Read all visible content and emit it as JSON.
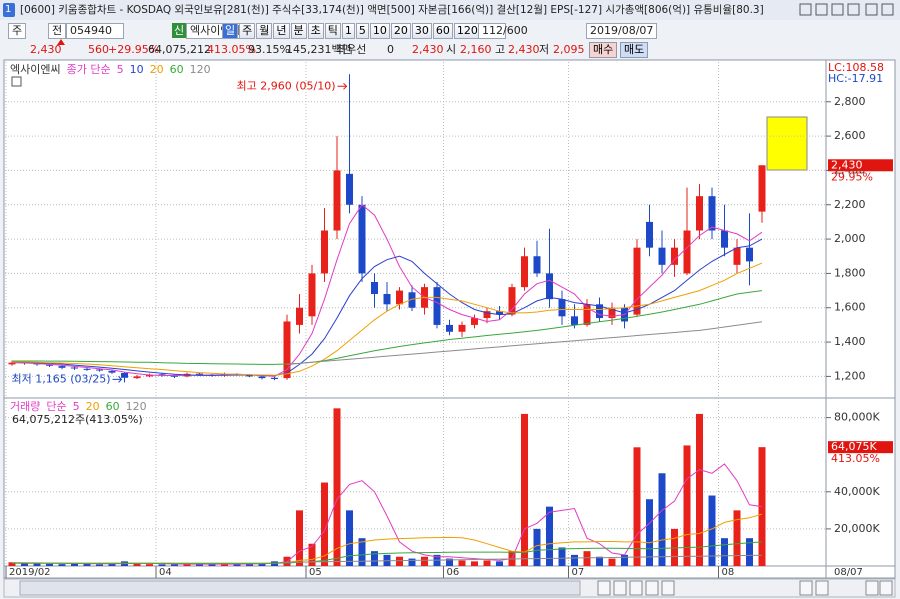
{
  "window": {
    "number": "1",
    "title": "[0600] 키움종합차트 - KOSDAQ 외국인보유[281(천)] 주식수[33,174(천)] 액면[500] 자본금[166(억)] 결산[12월] EPS[-127] 시가총액[806(억)] 유통비율[80.3]",
    "toolbar": {
      "market": "주",
      "scope": "전",
      "code": "054940",
      "badge": "신",
      "stock": "엑사이엔씨",
      "periods": [
        "일",
        "주",
        "월",
        "년",
        "분",
        "초",
        "틱"
      ],
      "intervals": [
        "1",
        "5",
        "10",
        "20",
        "30",
        "60",
        "120"
      ],
      "count": "112",
      "max": "/600",
      "date": "2019/08/07"
    },
    "quote": {
      "price": "2,430",
      "change": "560",
      "change_pct": "+29.95%",
      "volume": "64,075,212",
      "volume_pct": "413.05%",
      "ratio": "93.15%",
      "amount": "145,231백만",
      "best_label": "최우선",
      "best": "0",
      "best_price": "2,430",
      "open_label": "시",
      "open": "2,160",
      "high_label": "고",
      "high": "2,430",
      "low_label": "저",
      "low": "2,095",
      "buy": "매수",
      "sell": "매도"
    },
    "end_date": "08/07"
  },
  "chart_data": [
    {
      "type": "candlestick",
      "name": "엑사이엔씨",
      "legend_title": "종가 단순",
      "categories": [
        "2019/02",
        null,
        null,
        null,
        null,
        null,
        null,
        null,
        null,
        null,
        null,
        null,
        "04",
        null,
        null,
        null,
        null,
        null,
        null,
        null,
        null,
        null,
        null,
        null,
        "05",
        null,
        null,
        null,
        null,
        null,
        null,
        null,
        null,
        null,
        null,
        "06",
        null,
        null,
        null,
        null,
        null,
        null,
        null,
        null,
        null,
        "07",
        null,
        null,
        null,
        null,
        null,
        null,
        null,
        null,
        null,
        null,
        null,
        "08",
        null,
        null,
        null
      ],
      "open": [
        1270,
        1282,
        1276,
        1268,
        1260,
        1252,
        1244,
        1240,
        1232,
        1220,
        1190,
        1200,
        1212,
        1206,
        1200,
        1216,
        1210,
        1205,
        1214,
        1210,
        1200,
        1192,
        1190,
        1500,
        1550,
        1800,
        2050,
        2380,
        2200,
        1750,
        1680,
        1620,
        1690,
        1600,
        1720,
        1500,
        1460,
        1500,
        1540,
        1580,
        1560,
        1720,
        1900,
        1800,
        1650,
        1550,
        1500,
        1620,
        1540,
        1600,
        1560,
        2100,
        1950,
        1850,
        1800,
        2050,
        2250,
        2050,
        1850,
        1950,
        2160
      ],
      "high": [
        1292,
        1290,
        1282,
        1272,
        1264,
        1258,
        1250,
        1246,
        1238,
        1225,
        1208,
        1216,
        1218,
        1210,
        1222,
        1222,
        1214,
        1222,
        1218,
        1214,
        1205,
        1198,
        1560,
        1680,
        1850,
        2180,
        2600,
        2960,
        2250,
        1800,
        1750,
        1720,
        1730,
        1740,
        1750,
        1530,
        1520,
        1560,
        1600,
        1610,
        1740,
        1950,
        1990,
        2060,
        1700,
        1620,
        1650,
        1660,
        1630,
        1620,
        2000,
        2200,
        2050,
        2000,
        2300,
        2320,
        2300,
        2200,
        2000,
        2150,
        2430
      ],
      "low": [
        1262,
        1268,
        1262,
        1255,
        1242,
        1238,
        1232,
        1228,
        1215,
        1165,
        1185,
        1195,
        1198,
        1190,
        1195,
        1204,
        1198,
        1198,
        1204,
        1195,
        1183,
        1178,
        1180,
        1450,
        1500,
        1750,
        2000,
        2150,
        1750,
        1600,
        1580,
        1590,
        1580,
        1560,
        1480,
        1440,
        1430,
        1480,
        1510,
        1530,
        1550,
        1700,
        1780,
        1600,
        1500,
        1480,
        1490,
        1520,
        1500,
        1480,
        1550,
        1900,
        1800,
        1780,
        1790,
        2000,
        2000,
        1900,
        1800,
        1730,
        2095
      ],
      "close": [
        1280,
        1275,
        1270,
        1262,
        1250,
        1246,
        1240,
        1235,
        1222,
        1192,
        1200,
        1210,
        1205,
        1198,
        1215,
        1210,
        1204,
        1215,
        1210,
        1200,
        1190,
        1185,
        1520,
        1600,
        1800,
        2050,
        2400,
        2200,
        1800,
        1680,
        1620,
        1700,
        1600,
        1720,
        1500,
        1460,
        1500,
        1540,
        1580,
        1560,
        1720,
        1900,
        1800,
        1650,
        1550,
        1500,
        1620,
        1540,
        1600,
        1520,
        1950,
        1950,
        1850,
        1950,
        2050,
        2250,
        2050,
        1950,
        1950,
        1870,
        2430
      ],
      "up_color": "#e8211a",
      "down_color": "#1d48c8",
      "series": [
        {
          "name": "5",
          "color": "#e23cc4",
          "values": [
            1280,
            1278,
            1275,
            1270,
            1265,
            1258,
            1252,
            1245,
            1238,
            1225,
            1215,
            1208,
            1205,
            1205,
            1207,
            1208,
            1208,
            1210,
            1212,
            1210,
            1205,
            1200,
            1240,
            1330,
            1450,
            1650,
            1880,
            2090,
            2200,
            2140,
            2000,
            1840,
            1720,
            1660,
            1630,
            1590,
            1560,
            1540,
            1520,
            1530,
            1590,
            1680,
            1740,
            1760,
            1720,
            1680,
            1600,
            1560,
            1550,
            1560,
            1650,
            1720,
            1790,
            1880,
            1950,
            2020,
            2070,
            2050,
            2030,
            1990,
            2040
          ]
        },
        {
          "name": "10",
          "color": "#2a3fd0",
          "values": [
            1285,
            1282,
            1280,
            1276,
            1272,
            1266,
            1260,
            1254,
            1248,
            1240,
            1232,
            1225,
            1218,
            1212,
            1208,
            1206,
            1206,
            1207,
            1208,
            1208,
            1207,
            1205,
            1220,
            1270,
            1330,
            1420,
            1540,
            1670,
            1770,
            1840,
            1880,
            1900,
            1870,
            1800,
            1740,
            1680,
            1630,
            1590,
            1570,
            1560,
            1565,
            1600,
            1640,
            1660,
            1650,
            1630,
            1620,
            1610,
            1590,
            1570,
            1590,
            1620,
            1660,
            1700,
            1760,
            1820,
            1870,
            1910,
            1950,
            1960,
            2000
          ]
        },
        {
          "name": "20",
          "color": "#efa000",
          "values": [
            1285,
            1284,
            1282,
            1280,
            1278,
            1275,
            1272,
            1268,
            1262,
            1256,
            1250,
            1245,
            1240,
            1234,
            1228,
            1222,
            1218,
            1214,
            1212,
            1210,
            1208,
            1207,
            1215,
            1230,
            1260,
            1300,
            1350,
            1410,
            1470,
            1530,
            1580,
            1620,
            1650,
            1660,
            1660,
            1650,
            1640,
            1620,
            1600,
            1580,
            1570,
            1570,
            1575,
            1585,
            1590,
            1590,
            1590,
            1590,
            1595,
            1600,
            1610,
            1620,
            1640,
            1660,
            1680,
            1700,
            1730,
            1760,
            1800,
            1830,
            1860
          ]
        },
        {
          "name": "60",
          "color": "#3aa83a",
          "values": [
            1290,
            1290,
            1290,
            1289,
            1289,
            1288,
            1287,
            1286,
            1285,
            1284,
            1283,
            1282,
            1280,
            1278,
            1276,
            1275,
            1274,
            1273,
            1272,
            1271,
            1270,
            1270,
            1272,
            1276,
            1282,
            1292,
            1305,
            1320,
            1335,
            1350,
            1362,
            1374,
            1385,
            1395,
            1405,
            1415,
            1422,
            1430,
            1438,
            1445,
            1452,
            1460,
            1468,
            1478,
            1488,
            1498,
            1508,
            1518,
            1528,
            1538,
            1550,
            1562,
            1575,
            1590,
            1605,
            1620,
            1640,
            1660,
            1680,
            1690,
            1700
          ]
        },
        {
          "name": "120",
          "color": "#8c8c8c",
          "values": [
            null,
            null,
            null,
            null,
            null,
            null,
            null,
            null,
            null,
            null,
            null,
            null,
            null,
            null,
            null,
            null,
            null,
            null,
            null,
            null,
            null,
            null,
            1270,
            1276,
            1282,
            1288,
            1294,
            1300,
            1306,
            1312,
            1318,
            1324,
            1330,
            1336,
            1342,
            1348,
            1354,
            1360,
            1366,
            1372,
            1378,
            1384,
            1390,
            1396,
            1402,
            1408,
            1414,
            1420,
            1426,
            1432,
            1438,
            1444,
            1450,
            1456,
            1462,
            1468,
            1478,
            1488,
            1498,
            1508,
            1518
          ]
        }
      ],
      "ylim": [
        1080,
        3020
      ],
      "yticks": [
        {
          "value": 1200,
          "label": "1,200"
        },
        {
          "value": 1400,
          "label": "1,400"
        },
        {
          "value": 1600,
          "label": "1,600"
        },
        {
          "value": 1800,
          "label": "1,800"
        },
        {
          "value": 2000,
          "label": "2,000"
        },
        {
          "value": 2200,
          "label": "2,200"
        },
        {
          "value": 2400,
          "label": "2,400"
        },
        {
          "value": 2600,
          "label": "2,600"
        },
        {
          "value": 2800,
          "label": "2,800"
        }
      ],
      "grid": true,
      "annotations": {
        "high": "최고 2,960 (05/10)",
        "low": "최저 1,165 (03/25)"
      },
      "right_labels": {
        "lc": "LC:108.58",
        "hc": "HC:-17.91",
        "last": "2,430",
        "change": "29.95%"
      }
    },
    {
      "type": "bar",
      "name": "거래량",
      "legend_title": "단순",
      "values": [
        2000,
        1500,
        1800,
        1200,
        1000,
        1300,
        1100,
        900,
        1500,
        2500,
        1200,
        1000,
        900,
        800,
        1000,
        1200,
        900,
        1100,
        1000,
        1200,
        1500,
        2500,
        5000,
        30000,
        12000,
        45000,
        85000,
        30000,
        15000,
        8000,
        6000,
        5000,
        4000,
        5000,
        6000,
        4000,
        3000,
        2500,
        3000,
        2500,
        8000,
        82000,
        20000,
        32000,
        10000,
        6000,
        8000,
        5000,
        4000,
        6000,
        64000,
        36000,
        50000,
        20000,
        65000,
        82000,
        38000,
        15000,
        30000,
        15000,
        64075
      ],
      "series": [
        {
          "name": "5",
          "color": "#e23cc4",
          "values": [
            1700,
            1700,
            1650,
            1600,
            1500,
            1400,
            1300,
            1200,
            1200,
            1300,
            1400,
            1400,
            1300,
            1100,
            1000,
            1000,
            1000,
            1000,
            1000,
            1100,
            1200,
            1500,
            2300,
            8000,
            10500,
            19000,
            36000,
            44000,
            46000,
            40000,
            27000,
            13000,
            8000,
            6000,
            5000,
            5000,
            4500,
            4000,
            3500,
            3000,
            4000,
            20000,
            23000,
            29000,
            30000,
            31000,
            15000,
            12000,
            7000,
            6000,
            17000,
            23000,
            30000,
            35000,
            47000,
            52000,
            50000,
            55000,
            46000,
            33000,
            32000
          ]
        },
        {
          "name": "20",
          "color": "#efa000",
          "values": [
            1600,
            1600,
            1580,
            1560,
            1540,
            1520,
            1500,
            1480,
            1470,
            1460,
            1450,
            1440,
            1430,
            1420,
            1410,
            1400,
            1390,
            1390,
            1390,
            1400,
            1410,
            1450,
            1700,
            3000,
            3500,
            5500,
            9500,
            12000,
            13000,
            14000,
            14500,
            14800,
            15000,
            15200,
            15300,
            15400,
            15200,
            14000,
            12000,
            10000,
            8000,
            7500,
            11000,
            12000,
            12500,
            13000,
            13000,
            13200,
            13200,
            13000,
            13000,
            12500,
            14000,
            15000,
            17000,
            17500,
            20000,
            23500,
            25000,
            26000,
            28000
          ]
        },
        {
          "name": "60",
          "color": "#3aa83a",
          "values": [
            1500,
            1500,
            1500,
            1500,
            1500,
            1500,
            1500,
            1500,
            1500,
            1500,
            1500,
            1500,
            1500,
            1500,
            1500,
            1500,
            1500,
            1500,
            1500,
            1500,
            1520,
            1550,
            1600,
            2000,
            2300,
            3000,
            4200,
            5500,
            6000,
            6500,
            6800,
            7000,
            7100,
            7200,
            7300,
            7400,
            7500,
            7500,
            7500,
            7500,
            7400,
            7300,
            8500,
            8800,
            9200,
            9400,
            9500,
            9600,
            9600,
            9500,
            9400,
            9300,
            9500,
            9700,
            10000,
            10200,
            10800,
            11500,
            12000,
            12500,
            13000
          ]
        },
        {
          "name": "120",
          "color": "#8c8c8c",
          "values": [
            null,
            null,
            null,
            null,
            null,
            null,
            null,
            null,
            null,
            null,
            null,
            null,
            null,
            null,
            null,
            null,
            null,
            null,
            null,
            null,
            null,
            null,
            2000,
            2100,
            2200,
            2300,
            2400,
            2500,
            2600,
            2700,
            2800,
            2900,
            3000,
            3100,
            3200,
            3300,
            3400,
            3500,
            3600,
            3700,
            3800,
            3900,
            4000,
            4100,
            4200,
            4300,
            4400,
            4500,
            4600,
            4700,
            4800,
            4900,
            5000,
            5100,
            5200,
            5300,
            5400,
            5500,
            5600,
            5700,
            5800
          ]
        }
      ],
      "ylim": [
        0,
        89500
      ],
      "yticks": [
        {
          "value": 20000,
          "label": "20,000K"
        },
        {
          "value": 40000,
          "label": "40,000K"
        },
        {
          "value": 80000,
          "label": "80,000K"
        }
      ],
      "grid": true,
      "summary": "64,075,212주(413.05%)",
      "right_labels": {
        "last": "64,075K",
        "change": "413.05%"
      }
    }
  ]
}
